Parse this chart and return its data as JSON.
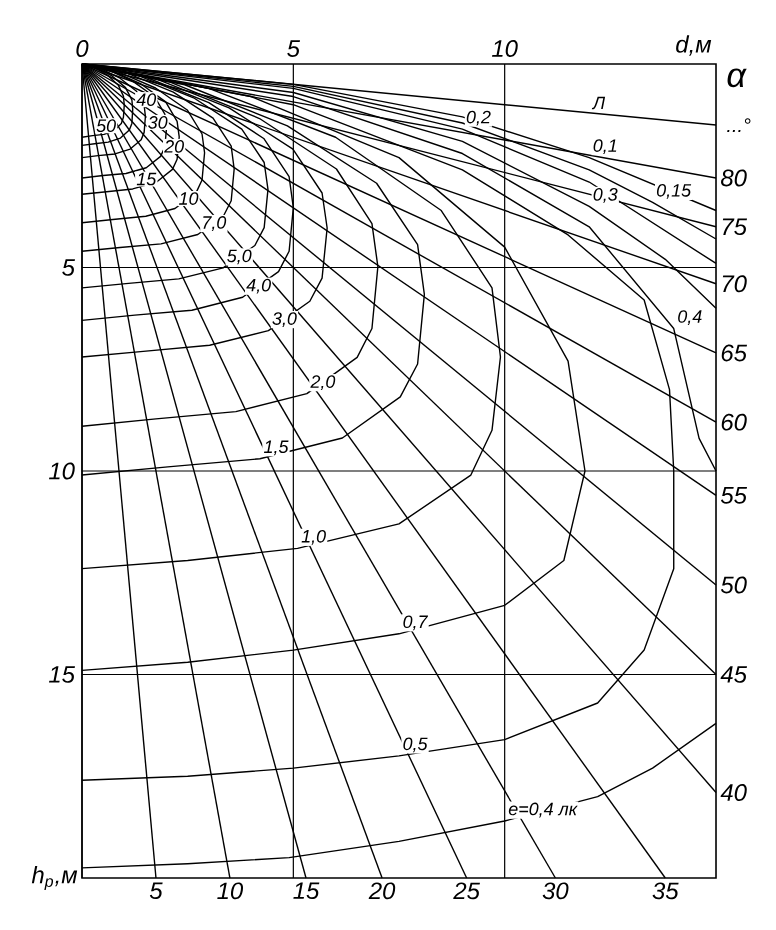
{
  "chart_data": {
    "type": "line",
    "xlabel": "d,м",
    "ylabel": "h$_{p}$,м",
    "y2label": "α",
    "color": "#000000",
    "xlim": [
      0,
      15
    ],
    "ylim": [
      20,
      0
    ],
    "xticks": [
      0,
      5,
      10
    ],
    "yticks": [
      5,
      10,
      15
    ],
    "grid": true,
    "series": [
      {
        "x": [
          0,
          0.3,
          0.6,
          0.86,
          0.98,
          1,
          0.98,
          0.93,
          0.76,
          0.52,
          0.25,
          0
        ],
        "values": [
          0,
          0.09,
          0.27,
          0.52,
          0.79,
          1.01,
          1.31,
          1.46,
          1.64,
          1.73,
          1.76,
          1.8
        ]
      },
      {
        "x": [
          0,
          0.36,
          0.72,
          1.03,
          1.18,
          1.2,
          1.18,
          1.12,
          0.91,
          0.62,
          0.3,
          0
        ],
        "values": [
          0,
          0.1,
          0.3,
          0.58,
          0.88,
          1.12,
          1.46,
          1.62,
          1.82,
          1.92,
          1.96,
          2.0
        ]
      },
      {
        "x": [
          0,
          0.45,
          0.9,
          1.29,
          1.47,
          1.5,
          1.47,
          1.4,
          1.14,
          0.78,
          0.38,
          0
        ],
        "values": [
          0,
          0.12,
          0.35,
          0.67,
          1.01,
          1.29,
          1.68,
          1.86,
          2.09,
          2.21,
          2.25,
          2.3
        ]
      },
      {
        "x": [
          0,
          0.6,
          1.2,
          1.72,
          1.96,
          2.0,
          1.96,
          1.86,
          1.52,
          1.04,
          0.5,
          0
        ],
        "values": [
          0,
          0.14,
          0.42,
          0.81,
          1.23,
          1.57,
          2.04,
          2.27,
          2.55,
          2.69,
          2.74,
          2.8
        ]
      },
      {
        "x": [
          0,
          0.69,
          1.38,
          1.98,
          2.25,
          2.3,
          2.25,
          2.14,
          1.75,
          1.2,
          0.58,
          0
        ],
        "values": [
          0,
          0.16,
          0.48,
          0.93,
          1.41,
          1.79,
          2.34,
          2.59,
          2.91,
          3.07,
          3.14,
          3.2
        ]
      },
      {
        "x": [
          0,
          0.87,
          1.74,
          2.49,
          2.84,
          2.9,
          2.84,
          2.7,
          2.2,
          1.51,
          0.73,
          0
        ],
        "values": [
          0,
          0.2,
          0.59,
          1.13,
          1.72,
          2.18,
          2.85,
          3.16,
          3.55,
          3.74,
          3.82,
          3.9
        ]
      },
      {
        "x": [
          0,
          1.08,
          2.16,
          3.1,
          3.53,
          3.6,
          3.53,
          3.35,
          2.74,
          1.87,
          0.9,
          0
        ],
        "values": [
          0,
          0.23,
          0.69,
          1.33,
          2.02,
          2.58,
          3.36,
          3.73,
          4.19,
          4.42,
          4.51,
          4.6
        ]
      },
      {
        "x": [
          0,
          1.32,
          2.64,
          3.78,
          4.31,
          4.4,
          4.31,
          4.09,
          3.34,
          2.29,
          1.1,
          0
        ],
        "values": [
          0,
          0.28,
          0.83,
          1.6,
          2.42,
          3.08,
          4.02,
          4.46,
          5.01,
          5.28,
          5.39,
          5.5
        ]
      },
      {
        "x": [
          0,
          1.5,
          3.0,
          4.3,
          4.9,
          5.0,
          4.9,
          4.65,
          3.8,
          2.6,
          1.25,
          0
        ],
        "values": [
          0,
          0.32,
          0.95,
          1.83,
          2.77,
          3.53,
          4.6,
          5.1,
          5.73,
          6.05,
          6.17,
          6.3
        ]
      },
      {
        "x": [
          0,
          1.74,
          3.48,
          4.99,
          5.68,
          5.8,
          5.68,
          5.39,
          4.41,
          3.02,
          1.45,
          0
        ],
        "values": [
          0,
          0.36,
          1.08,
          2.09,
          3.17,
          4.03,
          5.26,
          5.83,
          6.55,
          6.91,
          7.06,
          7.2
        ]
      },
      {
        "x": [
          0,
          2.1,
          4.2,
          6.02,
          6.86,
          7.0,
          6.86,
          6.51,
          5.32,
          3.64,
          1.75,
          0
        ],
        "values": [
          0,
          0.45,
          1.34,
          2.58,
          3.92,
          4.98,
          6.5,
          7.21,
          8.1,
          8.54,
          8.72,
          8.9
        ]
      },
      {
        "x": [
          0,
          2.43,
          4.86,
          6.97,
          7.94,
          8.1,
          7.94,
          7.53,
          6.16,
          4.21,
          2.03,
          0
        ],
        "values": [
          0,
          0.51,
          1.52,
          2.93,
          4.44,
          5.66,
          7.37,
          8.18,
          9.19,
          9.7,
          9.9,
          10.1
        ]
      },
      {
        "x": [
          0,
          3,
          6,
          8.5,
          9.7,
          9.9,
          9.7,
          9.2,
          7.5,
          5.1,
          2.5,
          0
        ],
        "values": [
          0,
          0.6,
          1.8,
          3.6,
          5.5,
          7.2,
          9,
          10.1,
          11.3,
          11.9,
          12.2,
          12.4
        ]
      },
      {
        "x": [
          0,
          4,
          7.5,
          10,
          11.5,
          11.9,
          11.4,
          10,
          7.5,
          5,
          2.5,
          0
        ],
        "values": [
          0,
          0.8,
          2.3,
          4.5,
          7.3,
          10,
          12.2,
          13.3,
          14.0,
          14.4,
          14.7,
          14.9
        ]
      },
      {
        "x": [
          0,
          5,
          9,
          11.5,
          13.3,
          13.9,
          14,
          14,
          13.3,
          12.2,
          10,
          7.5,
          5,
          2.5,
          0
        ],
        "values": [
          0,
          1.0,
          2.6,
          4.2,
          5.8,
          8,
          10,
          12.4,
          14.4,
          15.7,
          16.6,
          17.0,
          17.3,
          17.5,
          17.6
        ]
      },
      {
        "x": [
          0,
          5,
          9,
          12,
          14,
          14.6,
          15
        ],
        "values": [
          0,
          0.8,
          2.2,
          4,
          6.5,
          9.2,
          10
        ]
      },
      {
        "x": [
          15,
          13.5,
          12.2,
          10,
          7.5,
          4.9,
          2.5,
          0
        ],
        "values": [
          16.2,
          17.3,
          18.0,
          18.6,
          19.1,
          19.5,
          19.65,
          19.75
        ]
      },
      {
        "x": [
          0,
          5,
          9,
          12,
          13.8,
          15
        ],
        "values": [
          0,
          0.7,
          1.9,
          3.5,
          4.8,
          6.0
        ]
      },
      {
        "x": [
          0,
          5,
          9,
          12,
          15
        ],
        "values": [
          0,
          0.6,
          1.6,
          2.9,
          4.9
        ]
      },
      {
        "x": [
          0,
          5,
          9,
          12,
          13.5,
          15
        ],
        "values": [
          0,
          0.55,
          1.45,
          2.6,
          3.4,
          4.3
        ]
      },
      {
        "x": [
          0,
          5,
          9,
          12,
          15
        ],
        "values": [
          0,
          0.5,
          1.3,
          2.3,
          3.6
        ]
      },
      {
        "name": "5",
        "x": [
          0,
          1.75
        ],
        "values": [
          0,
          20
        ]
      },
      {
        "name": "10",
        "x": [
          0,
          3.5
        ],
        "values": [
          0,
          20
        ]
      },
      {
        "name": "15",
        "x": [
          0,
          5.3
        ],
        "values": [
          0,
          20
        ]
      },
      {
        "name": "20",
        "x": [
          0,
          7.1
        ],
        "values": [
          0,
          20
        ]
      },
      {
        "name": "25",
        "x": [
          0,
          9.1
        ],
        "values": [
          0,
          20
        ]
      },
      {
        "name": "30",
        "x": [
          0,
          11.2
        ],
        "values": [
          0,
          20
        ]
      },
      {
        "name": "35",
        "x": [
          0,
          13.8
        ],
        "values": [
          0,
          20
        ]
      },
      {
        "name": "40",
        "x": [
          0,
          15
        ],
        "values": [
          0,
          17.9
        ]
      },
      {
        "name": "45",
        "x": [
          0,
          15
        ],
        "values": [
          0,
          15.0
        ]
      },
      {
        "name": "50",
        "x": [
          0,
          15
        ],
        "values": [
          0,
          12.8
        ]
      },
      {
        "name": "55",
        "x": [
          0,
          15
        ],
        "values": [
          0,
          10.6
        ]
      },
      {
        "name": "60",
        "x": [
          0,
          15
        ],
        "values": [
          0,
          8.8
        ]
      },
      {
        "name": "65",
        "x": [
          0,
          15
        ],
        "values": [
          0,
          7.1
        ]
      },
      {
        "name": "70",
        "x": [
          0,
          15
        ],
        "values": [
          0,
          5.4
        ]
      },
      {
        "name": "75",
        "x": [
          0,
          15
        ],
        "values": [
          0,
          4.0
        ]
      },
      {
        "name": "80",
        "x": [
          0,
          15
        ],
        "values": [
          0,
          2.8
        ]
      },
      {
        "x": [
          0,
          15
        ],
        "values": [
          0,
          1.5
        ]
      }
    ],
    "annotations": [
      "...°",
      {
        "text": "50",
        "x": 0.25,
        "y": 1.76
      },
      {
        "text": "40",
        "x": 1.2,
        "y": 1.12
      },
      {
        "text": "30",
        "x": 1.47,
        "y": 1.68
      },
      {
        "text": "20",
        "x": 1.86,
        "y": 2.27
      },
      {
        "text": "15",
        "x": 1.2,
        "y": 3.07
      },
      {
        "text": "10",
        "x": 2.2,
        "y": 3.55
      },
      {
        "text": "7,0",
        "x": 2.74,
        "y": 4.19
      },
      {
        "text": "5,0",
        "x": 3.34,
        "y": 5.01
      },
      {
        "text": "4,0",
        "x": 3.8,
        "y": 5.73
      },
      {
        "text": "3,0",
        "x": 4.41,
        "y": 6.55
      },
      {
        "text": "2,0",
        "x": 5.32,
        "y": 8.1
      },
      {
        "text": "1,5",
        "x": 4.21,
        "y": 9.7
      },
      {
        "text": "1,0",
        "x": 5.1,
        "y": 11.9
      },
      {
        "text": "0,7",
        "x": 7.5,
        "y": 14.0
      },
      {
        "text": "0,5",
        "x": 7.5,
        "y": 17.0
      },
      {
        "text": "e=0,4 лк",
        "x": 10,
        "y": 18.6
      },
      {
        "text": "0,4",
        "x": 14,
        "y": 6.5
      },
      {
        "text": "0,3",
        "x": 12,
        "y": 3.5
      },
      {
        "text": "0,2",
        "x": 9,
        "y": 1.6
      },
      {
        "text": "0,15",
        "x": 13.5,
        "y": 3.4
      },
      {
        "text": "0,1",
        "x": 12,
        "y": 2.3
      },
      {
        "text": "Л",
        "x": 12,
        "y": 1.2
      }
    ]
  }
}
